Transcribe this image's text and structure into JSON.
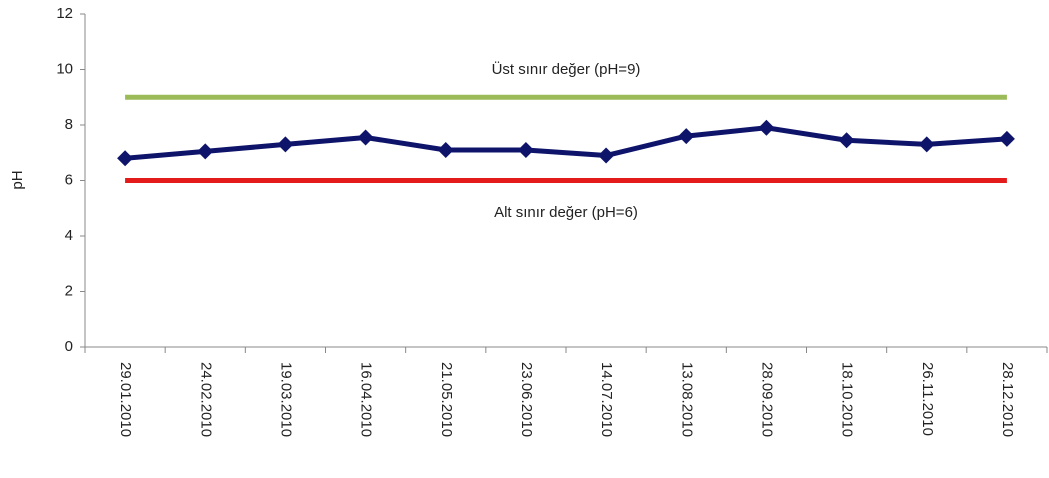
{
  "chart_data": {
    "type": "line",
    "y_label": "pH",
    "categories": [
      "29.01.2010",
      "24.02.2010",
      "19.03.2010",
      "16.04.2010",
      "21.05.2010",
      "23.06.2010",
      "14.07.2010",
      "13.08.2010",
      "28.09.2010",
      "18.10.2010",
      "26.11.2010",
      "28.12.2010"
    ],
    "series": [
      {
        "color": "#0f146b",
        "values": [
          6.8,
          7.05,
          7.3,
          7.55,
          7.1,
          7.1,
          6.9,
          7.6,
          7.9,
          7.45,
          7.3,
          7.5
        ],
        "markers": true
      },
      {
        "color": "#9bbb59",
        "values": [
          9,
          9,
          9,
          9,
          9,
          9,
          9,
          9,
          9,
          9,
          9,
          9
        ],
        "markers": false
      },
      {
        "color": "#e41b1b",
        "values": [
          6,
          6,
          6,
          6,
          6,
          6,
          6,
          6,
          6,
          6,
          6,
          6
        ],
        "markers": false
      }
    ],
    "annotations": [
      "Üst sınır değer (pH=9)",
      "Alt sınır değer (pH=6)"
    ],
    "ylim": [
      0,
      12
    ],
    "yticks": [
      0,
      2,
      4,
      6,
      8,
      10,
      12
    ],
    "grid": false
  }
}
